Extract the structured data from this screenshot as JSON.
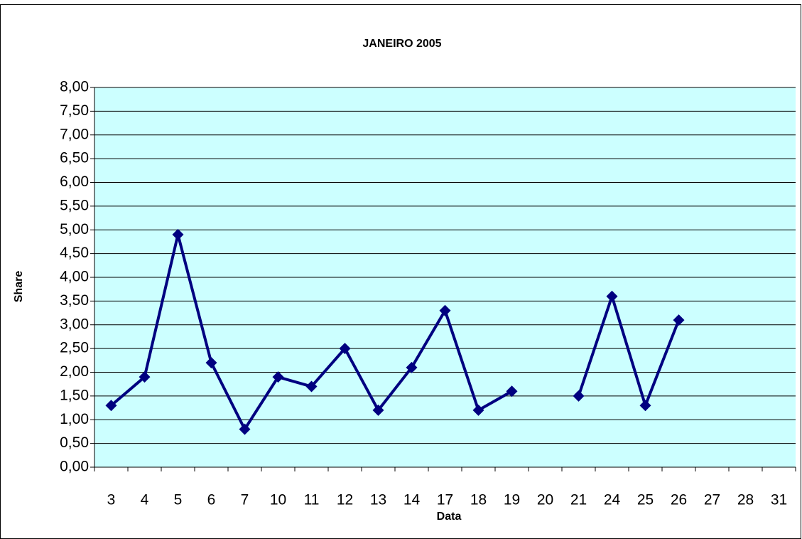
{
  "chart_data": {
    "type": "line",
    "title": "JANEIRO 2005",
    "x_label": "Data",
    "y_label": "Share",
    "categories": [
      "3",
      "4",
      "5",
      "6",
      "7",
      "10",
      "11",
      "12",
      "13",
      "14",
      "17",
      "18",
      "19",
      "20",
      "21",
      "24",
      "25",
      "26",
      "27",
      "28",
      "31"
    ],
    "series": [
      {
        "name": "Share",
        "color": "#000080",
        "values": [
          1.3,
          1.9,
          4.9,
          2.2,
          0.8,
          1.9,
          1.7,
          2.5,
          1.2,
          2.1,
          3.3,
          1.2,
          1.6,
          null,
          1.5,
          3.6,
          1.3,
          3.1,
          null,
          null,
          null
        ]
      }
    ],
    "ylim": [
      0,
      8
    ],
    "yticks": [
      {
        "value": 0,
        "label": "0,00"
      },
      {
        "value": 0.5,
        "label": "0,50"
      },
      {
        "value": 1,
        "label": "1,00"
      },
      {
        "value": 1.5,
        "label": "1,50"
      },
      {
        "value": 2,
        "label": "2,00"
      },
      {
        "value": 2.5,
        "label": "2,50"
      },
      {
        "value": 3,
        "label": "3,00"
      },
      {
        "value": 3.5,
        "label": "3,50"
      },
      {
        "value": 4,
        "label": "4,00"
      },
      {
        "value": 4.5,
        "label": "4,50"
      },
      {
        "value": 5,
        "label": "5,00"
      },
      {
        "value": 5.5,
        "label": "5,50"
      },
      {
        "value": 6,
        "label": "6,00"
      },
      {
        "value": 6.5,
        "label": "6,50"
      },
      {
        "value": 7,
        "label": "7,00"
      },
      {
        "value": 7.5,
        "label": "7,50"
      },
      {
        "value": 8,
        "label": "8,00"
      }
    ],
    "grid": true,
    "plot_background": "#ccffff"
  }
}
